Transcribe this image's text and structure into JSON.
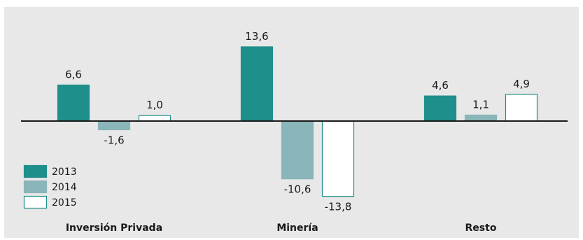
{
  "chart_data": {
    "type": "bar",
    "categories": [
      "Inversión Privada",
      "Minería",
      "Resto"
    ],
    "series": [
      {
        "name": "2013",
        "values": [
          6.6,
          13.6,
          4.6
        ],
        "labels": [
          "6,6",
          "13,6",
          "4,6"
        ],
        "color": "#1f8f8c",
        "stroke": "#1f8f8c"
      },
      {
        "name": "2014",
        "values": [
          -1.6,
          -10.6,
          1.1
        ],
        "labels": [
          "-1,6",
          "-10,6",
          "1,1"
        ],
        "color": "#8ab5b9",
        "stroke": "#8ab5b9"
      },
      {
        "name": "2015",
        "values": [
          1.0,
          -13.8,
          4.9
        ],
        "labels": [
          "1,0",
          "-13,8",
          "4,9"
        ],
        "color": "#ffffff",
        "stroke": "#1f8f8c"
      }
    ],
    "ylim": [
      -15,
      15
    ],
    "grid": false,
    "legend": "bottom-left",
    "background": "#e8e8e8",
    "axis_color": "#1a1a1a"
  }
}
